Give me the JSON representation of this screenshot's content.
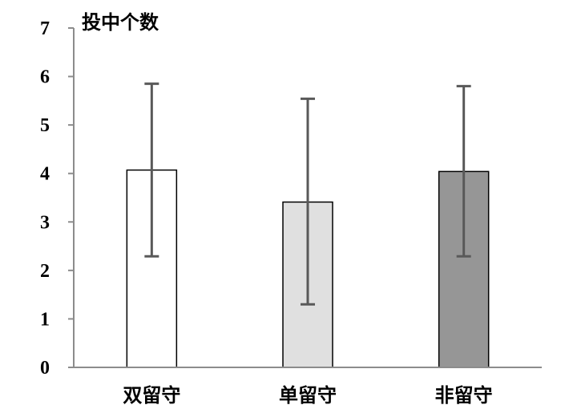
{
  "chart_data": {
    "type": "bar",
    "ylabel": "投中个数",
    "categories": [
      "双留守",
      "单留守",
      "非留守"
    ],
    "values": [
      4.07,
      3.41,
      4.04
    ],
    "error_high": [
      5.85,
      5.54,
      5.8
    ],
    "error_low": [
      2.29,
      1.3,
      2.29
    ],
    "colors": [
      "#ffffff",
      "#e0e0e0",
      "#969696"
    ],
    "ylim": [
      0,
      7
    ],
    "yticks": [
      "0",
      "1",
      "2",
      "3",
      "4",
      "5",
      "6",
      "7"
    ],
    "grid": false
  }
}
